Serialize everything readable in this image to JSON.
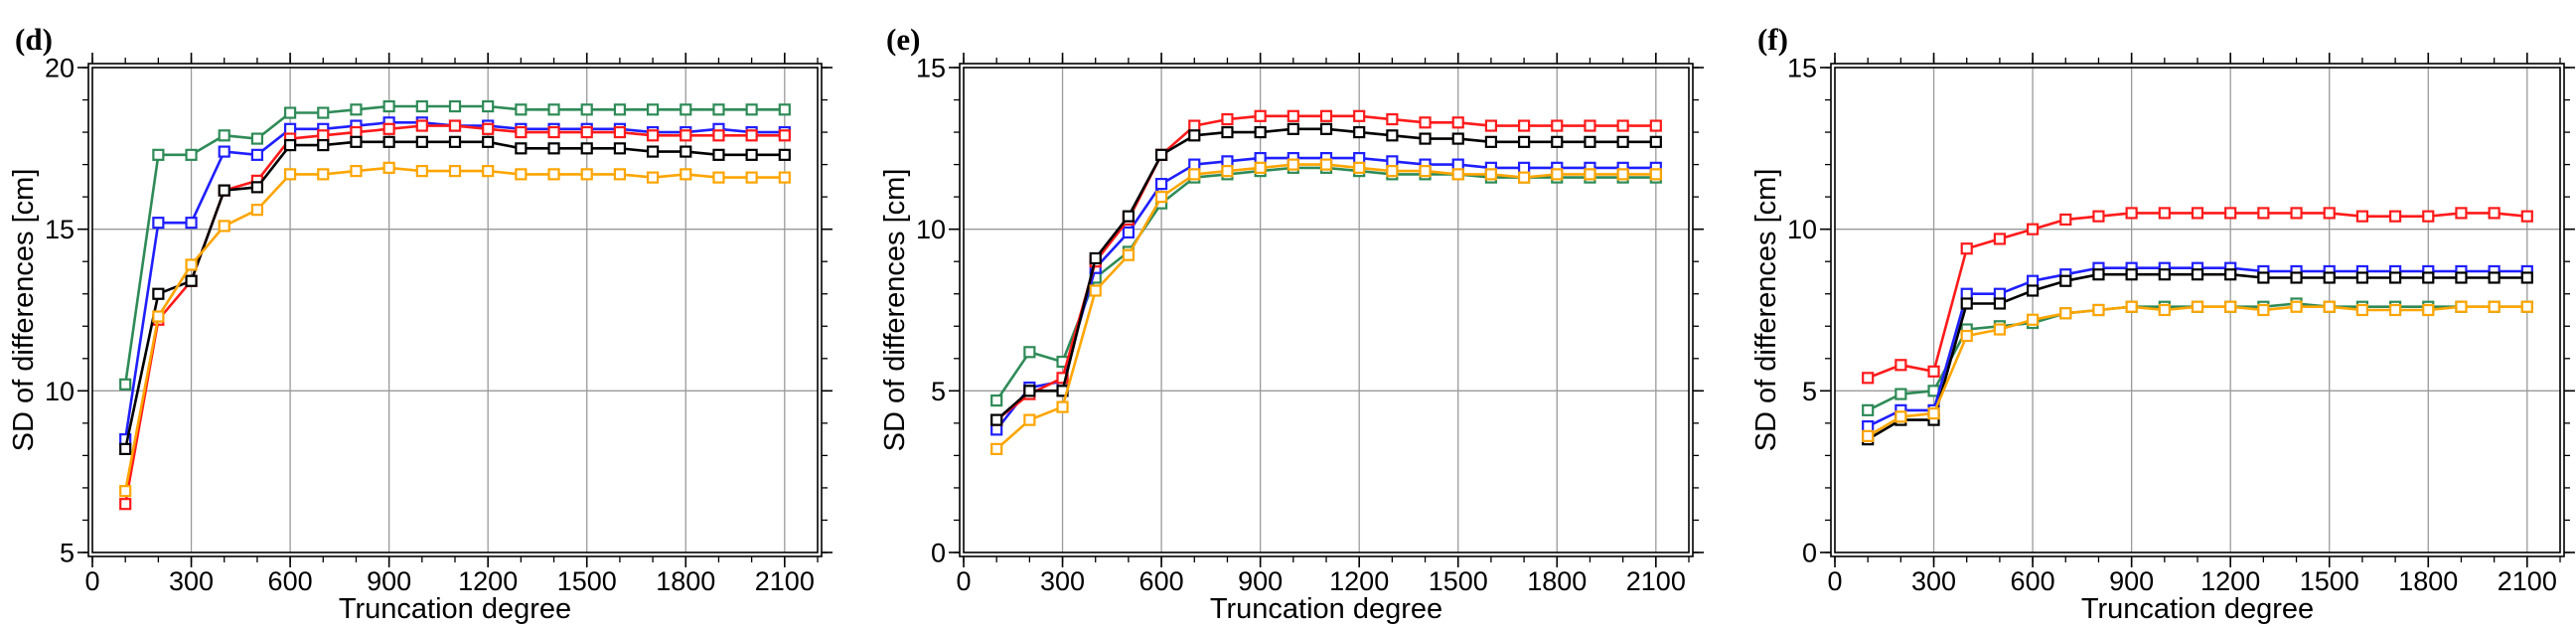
{
  "chart_data": [
    {
      "type": "line",
      "panel_label": "(d)",
      "xlabel": "Truncation degree",
      "ylabel": "SD of differences [cm]",
      "xlim": [
        0,
        2200
      ],
      "ylim": [
        5,
        20
      ],
      "xticks": [
        0,
        300,
        600,
        900,
        1200,
        1500,
        1800,
        2100
      ],
      "xtick_labels": [
        "0",
        "300",
        "600",
        "900",
        "1200",
        "1500",
        "1800",
        "2100"
      ],
      "yticks": [
        5,
        10,
        15,
        20
      ],
      "ytick_labels": [
        "5",
        "10",
        "15",
        "20"
      ],
      "grid": true,
      "x": [
        100,
        200,
        300,
        400,
        500,
        600,
        700,
        800,
        900,
        1000,
        1100,
        1200,
        1300,
        1400,
        1500,
        1600,
        1700,
        1800,
        1900,
        2000,
        2100
      ],
      "series": [
        {
          "name": "green",
          "color": "#2e8b57",
          "values": [
            10.2,
            17.3,
            17.3,
            17.9,
            17.8,
            18.6,
            18.6,
            18.7,
            18.8,
            18.8,
            18.8,
            18.8,
            18.7,
            18.7,
            18.7,
            18.7,
            18.7,
            18.7,
            18.7,
            18.7,
            18.7
          ]
        },
        {
          "name": "blue",
          "color": "#1f1fff",
          "values": [
            8.5,
            15.2,
            15.2,
            17.4,
            17.3,
            18.1,
            18.1,
            18.2,
            18.3,
            18.3,
            18.2,
            18.2,
            18.1,
            18.1,
            18.1,
            18.1,
            18.0,
            18.0,
            18.1,
            18.0,
            18.0
          ]
        },
        {
          "name": "red",
          "color": "#ff1a1a",
          "values": [
            6.5,
            12.2,
            13.4,
            16.2,
            16.5,
            17.8,
            17.9,
            18.0,
            18.1,
            18.2,
            18.2,
            18.1,
            18.0,
            18.0,
            18.0,
            18.0,
            17.9,
            17.9,
            17.9,
            17.9,
            17.9
          ]
        },
        {
          "name": "black",
          "color": "#000000",
          "values": [
            8.2,
            13.0,
            13.4,
            16.2,
            16.3,
            17.6,
            17.6,
            17.7,
            17.7,
            17.7,
            17.7,
            17.7,
            17.5,
            17.5,
            17.5,
            17.5,
            17.4,
            17.4,
            17.3,
            17.3,
            17.3
          ]
        },
        {
          "name": "orange",
          "color": "#ffa500",
          "values": [
            6.9,
            12.3,
            13.9,
            15.1,
            15.6,
            16.7,
            16.7,
            16.8,
            16.9,
            16.8,
            16.8,
            16.8,
            16.7,
            16.7,
            16.7,
            16.7,
            16.6,
            16.7,
            16.6,
            16.6,
            16.6
          ]
        }
      ]
    },
    {
      "type": "line",
      "panel_label": "(e)",
      "xlabel": "Truncation degree",
      "ylabel": "SD of differences [cm]",
      "xlim": [
        0,
        2200
      ],
      "ylim": [
        0,
        15
      ],
      "xticks": [
        0,
        300,
        600,
        900,
        1200,
        1500,
        1800,
        2100
      ],
      "xtick_labels": [
        "0",
        "300",
        "600",
        "900",
        "1200",
        "1500",
        "1800",
        "2100"
      ],
      "yticks": [
        0,
        5,
        10,
        15
      ],
      "ytick_labels": [
        "0",
        "5",
        "10",
        "15"
      ],
      "grid": true,
      "x": [
        100,
        200,
        300,
        400,
        500,
        600,
        700,
        800,
        900,
        1000,
        1100,
        1200,
        1300,
        1400,
        1500,
        1600,
        1700,
        1800,
        1900,
        2000,
        2100
      ],
      "series": [
        {
          "name": "green",
          "color": "#2e8b57",
          "values": [
            4.7,
            6.2,
            5.9,
            8.5,
            9.3,
            10.8,
            11.6,
            11.7,
            11.8,
            11.9,
            11.9,
            11.8,
            11.7,
            11.7,
            11.7,
            11.6,
            11.6,
            11.6,
            11.6,
            11.6,
            11.6
          ]
        },
        {
          "name": "blue",
          "color": "#1f1fff",
          "values": [
            3.8,
            5.1,
            5.3,
            8.8,
            9.9,
            11.4,
            12.0,
            12.1,
            12.2,
            12.2,
            12.2,
            12.2,
            12.1,
            12.0,
            12.0,
            11.9,
            11.9,
            11.9,
            11.9,
            11.9,
            11.9
          ]
        },
        {
          "name": "red",
          "color": "#ff1a1a",
          "values": [
            4.1,
            4.9,
            5.4,
            9.0,
            10.3,
            12.3,
            13.2,
            13.4,
            13.5,
            13.5,
            13.5,
            13.5,
            13.4,
            13.3,
            13.3,
            13.2,
            13.2,
            13.2,
            13.2,
            13.2,
            13.2
          ]
        },
        {
          "name": "black",
          "color": "#000000",
          "values": [
            4.1,
            5.0,
            5.0,
            9.1,
            10.4,
            12.3,
            12.9,
            13.0,
            13.0,
            13.1,
            13.1,
            13.0,
            12.9,
            12.8,
            12.8,
            12.7,
            12.7,
            12.7,
            12.7,
            12.7,
            12.7
          ]
        },
        {
          "name": "orange",
          "color": "#ffa500",
          "values": [
            3.2,
            4.1,
            4.5,
            8.1,
            9.2,
            11.0,
            11.7,
            11.8,
            11.9,
            12.0,
            12.0,
            11.9,
            11.8,
            11.8,
            11.7,
            11.7,
            11.6,
            11.7,
            11.7,
            11.7,
            11.7
          ]
        }
      ]
    },
    {
      "type": "line",
      "panel_label": "(f)",
      "xlabel": "Truncation degree",
      "ylabel": "SD of differences [cm]",
      "xlim": [
        0,
        2200
      ],
      "ylim": [
        0,
        15
      ],
      "xticks": [
        0,
        300,
        600,
        900,
        1200,
        1500,
        1800,
        2100
      ],
      "xtick_labels": [
        "0",
        "300",
        "600",
        "900",
        "1200",
        "1500",
        "1800",
        "2100"
      ],
      "yticks": [
        0,
        5,
        10,
        15
      ],
      "ytick_labels": [
        "0",
        "5",
        "10",
        "15"
      ],
      "grid": true,
      "x": [
        100,
        200,
        300,
        400,
        500,
        600,
        700,
        800,
        900,
        1000,
        1100,
        1200,
        1300,
        1400,
        1500,
        1600,
        1700,
        1800,
        1900,
        2000,
        2100
      ],
      "series": [
        {
          "name": "green",
          "color": "#2e8b57",
          "values": [
            4.4,
            4.9,
            5.0,
            6.9,
            7.0,
            7.1,
            7.4,
            7.5,
            7.6,
            7.6,
            7.6,
            7.6,
            7.6,
            7.7,
            7.6,
            7.6,
            7.6,
            7.6,
            7.6,
            7.6,
            7.6
          ]
        },
        {
          "name": "blue",
          "color": "#1f1fff",
          "values": [
            3.9,
            4.4,
            4.4,
            8.0,
            8.0,
            8.4,
            8.6,
            8.8,
            8.8,
            8.8,
            8.8,
            8.8,
            8.7,
            8.7,
            8.7,
            8.7,
            8.7,
            8.7,
            8.7,
            8.7,
            8.7
          ]
        },
        {
          "name": "red",
          "color": "#ff1a1a",
          "values": [
            5.4,
            5.8,
            5.6,
            9.4,
            9.7,
            10.0,
            10.3,
            10.4,
            10.5,
            10.5,
            10.5,
            10.5,
            10.5,
            10.5,
            10.5,
            10.4,
            10.4,
            10.4,
            10.5,
            10.5,
            10.4
          ]
        },
        {
          "name": "black",
          "color": "#000000",
          "values": [
            3.5,
            4.1,
            4.1,
            7.7,
            7.7,
            8.1,
            8.4,
            8.6,
            8.6,
            8.6,
            8.6,
            8.6,
            8.5,
            8.5,
            8.5,
            8.5,
            8.5,
            8.5,
            8.5,
            8.5,
            8.5
          ]
        },
        {
          "name": "orange",
          "color": "#ffa500",
          "values": [
            3.6,
            4.2,
            4.3,
            6.7,
            6.9,
            7.2,
            7.4,
            7.5,
            7.6,
            7.5,
            7.6,
            7.6,
            7.5,
            7.6,
            7.6,
            7.5,
            7.5,
            7.5,
            7.6,
            7.6,
            7.6
          ]
        }
      ]
    }
  ]
}
